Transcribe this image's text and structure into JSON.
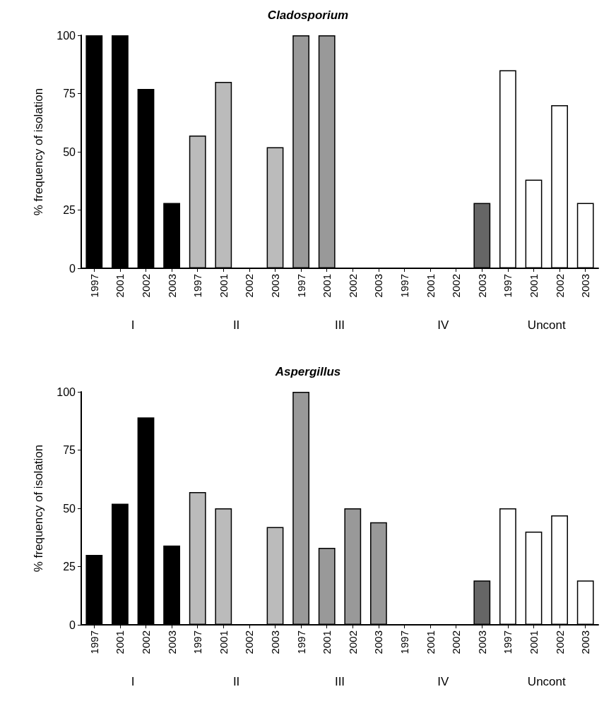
{
  "chart_data": [
    {
      "type": "bar",
      "title": "Cladosporium",
      "ylabel": "% frequency of isolation",
      "categories": [
        "1997",
        "2001",
        "2002",
        "2003",
        "1997",
        "2001",
        "2002",
        "2003",
        "1997",
        "2001",
        "2002",
        "2003",
        "1997",
        "2001",
        "2002",
        "2003",
        "1997",
        "2001",
        "2002",
        "2003"
      ],
      "values": [
        100,
        100,
        77,
        28,
        57,
        80,
        0,
        52,
        100,
        100,
        0,
        0,
        0,
        0,
        0,
        28,
        85,
        38,
        70,
        28
      ],
      "colors": [
        "#000000",
        "#000000",
        "#000000",
        "#000000",
        "#bbbbbb",
        "#bbbbbb",
        "#bbbbbb",
        "#bbbbbb",
        "#999999",
        "#999999",
        "#999999",
        "#999999",
        "#666666",
        "#666666",
        "#666666",
        "#666666",
        "#ffffff",
        "#ffffff",
        "#ffffff",
        "#ffffff"
      ],
      "ylim": [
        0,
        100
      ],
      "yticks": [
        0,
        25,
        50,
        75,
        100
      ],
      "grid": false,
      "annotations": [
        "I",
        "II",
        "III",
        "IV",
        "Uncont"
      ]
    },
    {
      "type": "bar",
      "title": "Aspergillus",
      "ylabel": "% frequency of isolation",
      "categories": [
        "1997",
        "2001",
        "2002",
        "2003",
        "1997",
        "2001",
        "2002",
        "2003",
        "1997",
        "2001",
        "2002",
        "2003",
        "1997",
        "2001",
        "2002",
        "2003",
        "1997",
        "2001",
        "2002",
        "2003"
      ],
      "values": [
        30,
        52,
        89,
        34,
        57,
        50,
        0,
        42,
        100,
        33,
        50,
        44,
        0,
        0,
        0,
        19,
        50,
        40,
        47,
        19
      ],
      "colors": [
        "#000000",
        "#000000",
        "#000000",
        "#000000",
        "#bbbbbb",
        "#bbbbbb",
        "#bbbbbb",
        "#bbbbbb",
        "#999999",
        "#999999",
        "#999999",
        "#999999",
        "#666666",
        "#666666",
        "#666666",
        "#666666",
        "#ffffff",
        "#ffffff",
        "#ffffff",
        "#ffffff"
      ],
      "ylim": [
        0,
        100
      ],
      "yticks": [
        0,
        25,
        50,
        75,
        100
      ],
      "grid": false,
      "annotations": [
        "I",
        "II",
        "III",
        "IV",
        "Uncont"
      ]
    }
  ]
}
